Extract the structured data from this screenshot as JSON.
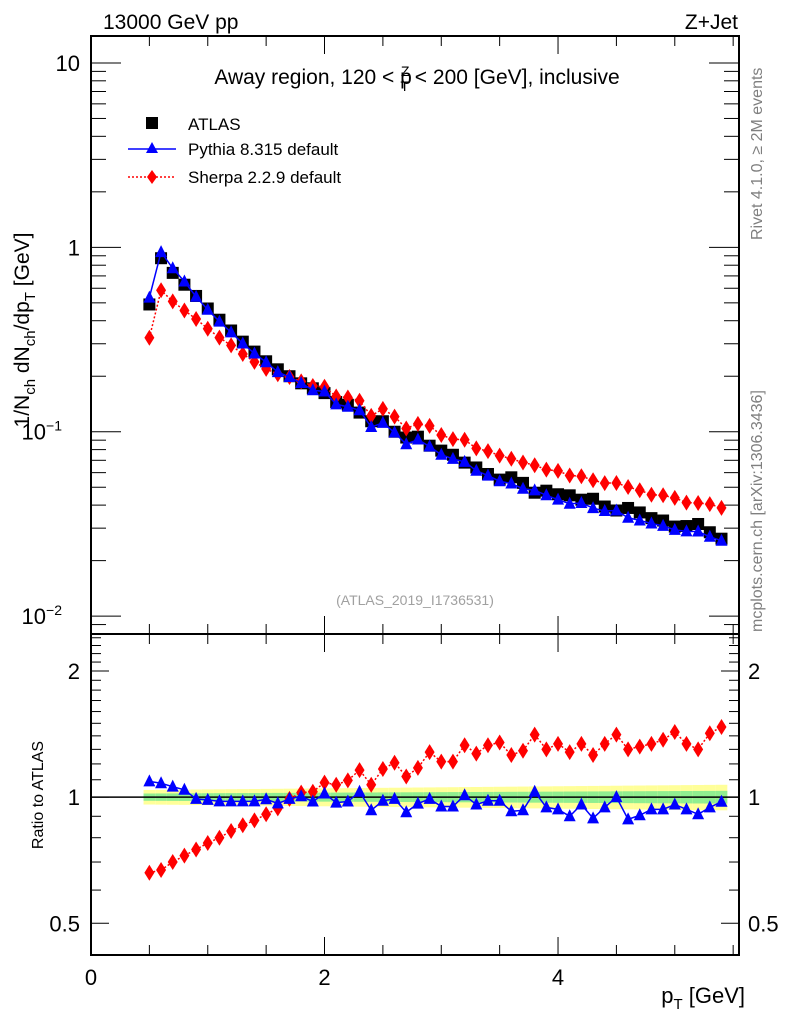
{
  "header": {
    "left": "13000 GeV pp",
    "right": "Z+Jet"
  },
  "side_labels": {
    "rivet": "Rivet 4.1.0, ≥ 2M events",
    "mcplots": "mcplots.cern.ch [arXiv:1306.3436]"
  },
  "chart_data": [
    {
      "type": "scatter",
      "panel": "main",
      "title": "Away region, 120 < p_T^Z < 200 [GeV], inclusive",
      "title_parts": {
        "pre": "Away region, 120 < p",
        "sup": "Z",
        "sub": "T",
        "post": " < 200 [GeV], inclusive"
      },
      "ylabel": "1/N_ch dN_ch/dp_T [GeV]",
      "ylabel_parts": {
        "a": "1/N",
        "a_sub": "ch",
        "b": " dN",
        "b_sub": "ch",
        "c": "/dp",
        "c_sub": "T",
        "d": " [GeV]"
      },
      "xlabel": "p_T [GeV]",
      "yscale": "log",
      "ylim": [
        0.008,
        14
      ],
      "xlim": [
        0,
        5.55
      ],
      "yticks": [
        {
          "value": 10,
          "label": "10",
          "exp": ""
        },
        {
          "value": 1,
          "label": "1",
          "exp": ""
        },
        {
          "value": 0.1,
          "label": "10",
          "exp": "−1"
        },
        {
          "value": 0.01,
          "label": "10",
          "exp": "−2"
        }
      ],
      "legend_position": "top-left",
      "watermark": "(ATLAS_2019_I1736531)",
      "x": [
        0.5,
        0.6,
        0.7,
        0.8,
        0.9,
        1.0,
        1.1,
        1.2,
        1.3,
        1.4,
        1.5,
        1.6,
        1.7,
        1.8,
        1.9,
        2.0,
        2.1,
        2.2,
        2.3,
        2.4,
        2.5,
        2.6,
        2.7,
        2.8,
        2.9,
        3.0,
        3.1,
        3.2,
        3.3,
        3.4,
        3.5,
        3.6,
        3.7,
        3.8,
        3.9,
        4.0,
        4.1,
        4.2,
        4.3,
        4.4,
        4.5,
        4.6,
        4.7,
        4.8,
        4.9,
        5.0,
        5.1,
        5.2,
        5.3,
        5.4
      ],
      "series": [
        {
          "name": "ATLAS",
          "color": "#000000",
          "marker": "square",
          "line": "none",
          "values": [
            0.49,
            0.873,
            0.727,
            0.627,
            0.545,
            0.466,
            0.405,
            0.354,
            0.308,
            0.272,
            0.241,
            0.218,
            0.2,
            0.183,
            0.172,
            0.162,
            0.145,
            0.14,
            0.127,
            0.114,
            0.114,
            0.1,
            0.093,
            0.094,
            0.084,
            0.079,
            0.075,
            0.068,
            0.064,
            0.059,
            0.055,
            0.0566,
            0.0528,
            0.0467,
            0.0479,
            0.0458,
            0.0452,
            0.0428,
            0.0433,
            0.0393,
            0.0374,
            0.0386,
            0.0365,
            0.034,
            0.033,
            0.0306,
            0.0308,
            0.0316,
            0.0285,
            0.0263
          ]
        },
        {
          "name": "Pythia 8.315 default",
          "color": "#0000ff",
          "marker": "triangle",
          "line": "solid",
          "ratio_to_atlas": "ratio.pythia"
        },
        {
          "name": "Sherpa 2.2.9 default",
          "color": "#ff0000",
          "marker": "diamond",
          "line": "dotted",
          "ratio_to_atlas": "ratio.sherpa"
        }
      ]
    },
    {
      "type": "scatter",
      "panel": "ratio",
      "ylabel": "Ratio to ATLAS",
      "xlabel": "p_T [GeV]",
      "yscale": "log",
      "ylim": [
        0.42,
        2.45
      ],
      "xlim": [
        0,
        5.55
      ],
      "yticks": [
        {
          "value": 2,
          "label": "2"
        },
        {
          "value": 1,
          "label": "1"
        },
        {
          "value": 0.5,
          "label": "0.5"
        }
      ],
      "xticks": [
        {
          "value": 0,
          "label": "0"
        },
        {
          "value": 2,
          "label": "2"
        },
        {
          "value": 4,
          "label": "4"
        }
      ],
      "band": {
        "green_halfwidth": [
          0.02,
          0.035
        ],
        "yellow_halfwidth": [
          0.04,
          0.07
        ],
        "green": "#90ee90",
        "yellow": "#ffff99"
      },
      "series": [
        {
          "name": "Pythia 8.315 default",
          "color": "#0000ff",
          "marker": "triangle",
          "values": [
            1.09,
            1.079,
            1.059,
            1.041,
            0.99,
            0.985,
            0.977,
            0.977,
            0.977,
            0.977,
            0.988,
            0.966,
            0.99,
            1.005,
            0.976,
            1.02,
            0.97,
            0.976,
            1.03,
            0.93,
            0.98,
            0.99,
            0.92,
            0.965,
            0.99,
            0.95,
            0.95,
            1.01,
            0.96,
            0.98,
            0.98,
            0.925,
            0.93,
            1.03,
            0.945,
            0.935,
            0.9,
            0.96,
            0.89,
            0.945,
            1.0,
            0.885,
            0.905,
            0.935,
            0.935,
            0.96,
            0.935,
            0.91,
            0.945,
            0.975
          ]
        },
        {
          "name": "Sherpa 2.2.9 default",
          "color": "#ff0000",
          "marker": "diamond",
          "values": [
            0.66,
            0.67,
            0.7,
            0.725,
            0.75,
            0.777,
            0.8,
            0.83,
            0.857,
            0.88,
            0.91,
            0.94,
            0.99,
            1.025,
            1.03,
            1.083,
            1.07,
            1.096,
            1.16,
            1.07,
            1.167,
            1.208,
            1.12,
            1.174,
            1.28,
            1.215,
            1.215,
            1.33,
            1.27,
            1.33,
            1.35,
            1.26,
            1.29,
            1.41,
            1.3,
            1.34,
            1.28,
            1.34,
            1.26,
            1.34,
            1.41,
            1.3,
            1.32,
            1.34,
            1.37,
            1.43,
            1.34,
            1.3,
            1.42,
            1.47
          ]
        }
      ]
    }
  ]
}
